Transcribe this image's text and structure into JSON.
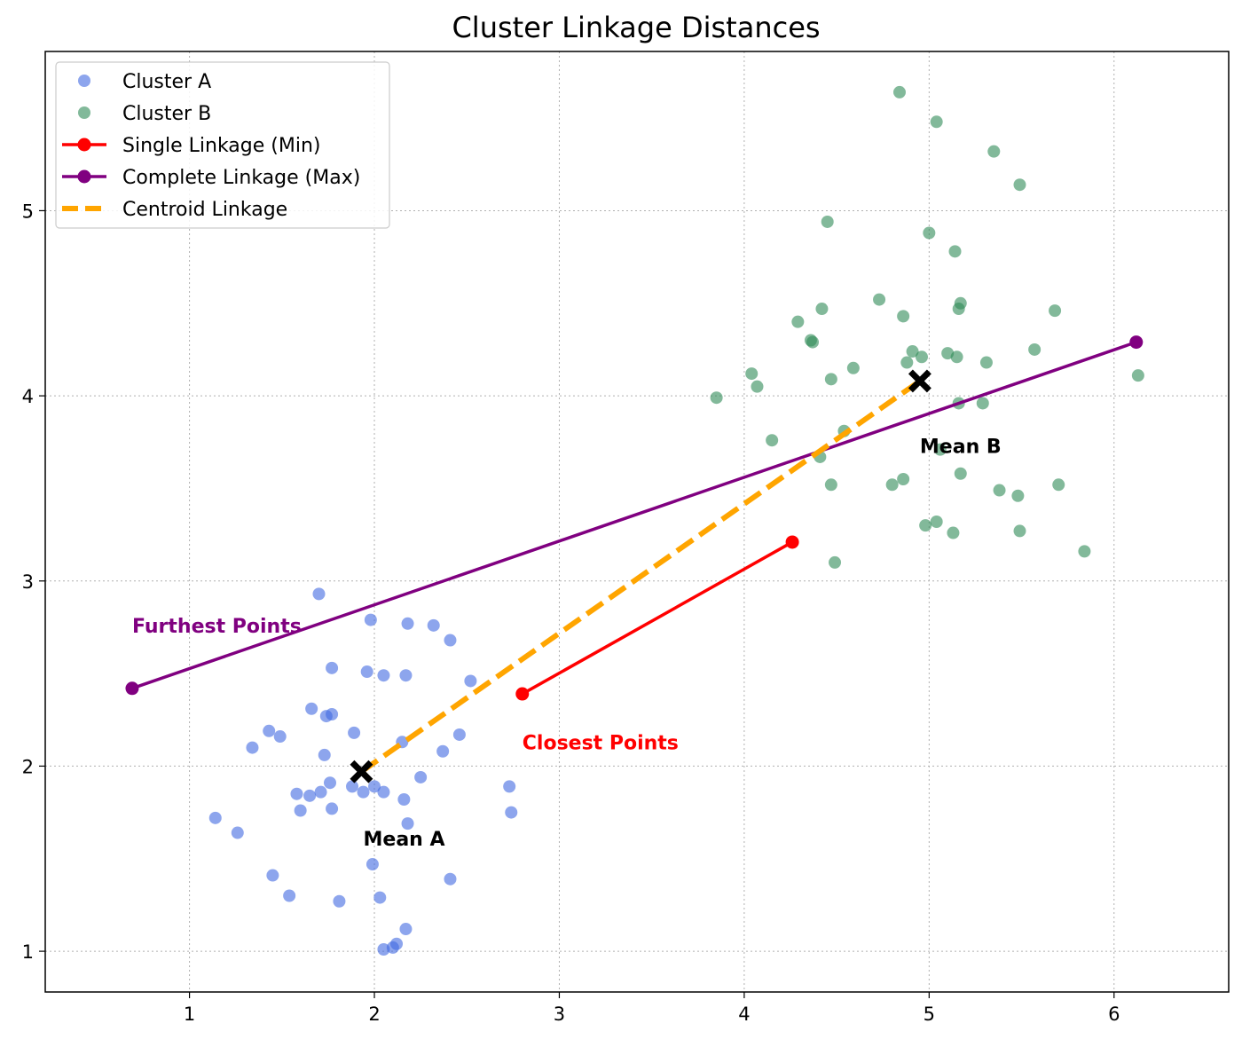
{
  "chart_data": {
    "type": "scatter",
    "title": "Cluster Linkage Distances",
    "xlabel": "",
    "ylabel": "",
    "xlim": [
      0.22,
      6.62
    ],
    "ylim": [
      0.78,
      5.86
    ],
    "xticks": [
      1,
      2,
      3,
      4,
      5,
      6
    ],
    "yticks": [
      1,
      2,
      3,
      4,
      5
    ],
    "grid": true,
    "legend_position": "top-left",
    "series": [
      {
        "name": "Cluster A",
        "type": "scatter",
        "color": "#4169e1",
        "points": [
          [
            1.7,
            2.93
          ],
          [
            1.98,
            2.79
          ],
          [
            2.18,
            2.77
          ],
          [
            2.32,
            2.76
          ],
          [
            2.41,
            2.68
          ],
          [
            1.77,
            2.53
          ],
          [
            1.96,
            2.51
          ],
          [
            2.05,
            2.49
          ],
          [
            2.17,
            2.49
          ],
          [
            2.52,
            2.46
          ],
          [
            1.66,
            2.31
          ],
          [
            1.74,
            2.27
          ],
          [
            1.77,
            2.28
          ],
          [
            1.43,
            2.19
          ],
          [
            1.49,
            2.16
          ],
          [
            1.89,
            2.18
          ],
          [
            2.46,
            2.17
          ],
          [
            2.15,
            2.13
          ],
          [
            1.34,
            2.1
          ],
          [
            2.37,
            2.08
          ],
          [
            1.73,
            2.06
          ],
          [
            2.25,
            1.94
          ],
          [
            1.76,
            1.91
          ],
          [
            1.88,
            1.89
          ],
          [
            2.0,
            1.89
          ],
          [
            2.73,
            1.89
          ],
          [
            1.94,
            1.86
          ],
          [
            2.05,
            1.86
          ],
          [
            1.58,
            1.85
          ],
          [
            1.65,
            1.84
          ],
          [
            1.71,
            1.86
          ],
          [
            2.16,
            1.82
          ],
          [
            1.77,
            1.77
          ],
          [
            1.6,
            1.76
          ],
          [
            2.74,
            1.75
          ],
          [
            1.14,
            1.72
          ],
          [
            2.18,
            1.69
          ],
          [
            1.26,
            1.64
          ],
          [
            1.99,
            1.47
          ],
          [
            1.45,
            1.41
          ],
          [
            2.41,
            1.39
          ],
          [
            1.54,
            1.3
          ],
          [
            1.81,
            1.27
          ],
          [
            2.03,
            1.29
          ],
          [
            2.17,
            1.12
          ],
          [
            2.12,
            1.04
          ],
          [
            2.05,
            1.01
          ],
          [
            2.1,
            1.02
          ]
        ]
      },
      {
        "name": "Cluster B",
        "type": "scatter",
        "color": "#2e8b57",
        "points": [
          [
            4.84,
            5.64
          ],
          [
            5.04,
            5.48
          ],
          [
            5.35,
            5.32
          ],
          [
            5.49,
            5.14
          ],
          [
            4.45,
            4.94
          ],
          [
            5.0,
            4.88
          ],
          [
            5.14,
            4.78
          ],
          [
            4.73,
            4.52
          ],
          [
            5.17,
            4.5
          ],
          [
            5.16,
            4.47
          ],
          [
            4.42,
            4.47
          ],
          [
            4.86,
            4.43
          ],
          [
            4.29,
            4.4
          ],
          [
            5.68,
            4.46
          ],
          [
            4.36,
            4.3
          ],
          [
            4.37,
            4.29
          ],
          [
            5.57,
            4.25
          ],
          [
            4.91,
            4.24
          ],
          [
            4.96,
            4.21
          ],
          [
            4.88,
            4.18
          ],
          [
            5.1,
            4.23
          ],
          [
            5.15,
            4.21
          ],
          [
            5.31,
            4.18
          ],
          [
            4.59,
            4.15
          ],
          [
            4.04,
            4.12
          ],
          [
            4.47,
            4.09
          ],
          [
            4.07,
            4.05
          ],
          [
            6.13,
            4.11
          ],
          [
            3.85,
            3.99
          ],
          [
            5.16,
            3.96
          ],
          [
            5.29,
            3.96
          ],
          [
            4.54,
            3.81
          ],
          [
            5.06,
            3.71
          ],
          [
            4.15,
            3.76
          ],
          [
            4.41,
            3.67
          ],
          [
            5.17,
            3.58
          ],
          [
            4.86,
            3.55
          ],
          [
            4.8,
            3.52
          ],
          [
            4.47,
            3.52
          ],
          [
            5.38,
            3.49
          ],
          [
            5.48,
            3.46
          ],
          [
            5.7,
            3.52
          ],
          [
            5.04,
            3.32
          ],
          [
            4.98,
            3.3
          ],
          [
            5.13,
            3.26
          ],
          [
            5.49,
            3.27
          ],
          [
            5.84,
            3.16
          ],
          [
            4.49,
            3.1
          ]
        ]
      },
      {
        "name": "Single Linkage (Min)",
        "type": "line",
        "color": "#ff0000",
        "style": "solid",
        "markers": true,
        "points": [
          [
            2.8,
            2.39
          ],
          [
            4.26,
            3.21
          ]
        ]
      },
      {
        "name": "Complete Linkage (Max)",
        "type": "line",
        "color": "#800080",
        "style": "solid",
        "markers": true,
        "points": [
          [
            0.69,
            2.42
          ],
          [
            6.12,
            4.29
          ]
        ]
      },
      {
        "name": "Centroid Linkage",
        "type": "line",
        "color": "#ffa500",
        "style": "dashed",
        "markers": false,
        "points": [
          [
            1.93,
            1.97
          ],
          [
            4.95,
            4.08
          ]
        ]
      }
    ],
    "centroids": [
      {
        "label": "Mean A",
        "x": 1.93,
        "y": 1.97,
        "marker": "X",
        "color": "#000000"
      },
      {
        "label": "Mean B",
        "x": 4.95,
        "y": 4.08,
        "marker": "X",
        "color": "#000000"
      }
    ],
    "annotations": [
      {
        "text": "Furthest Points",
        "x": 0.69,
        "y": 2.76,
        "color": "#800080"
      },
      {
        "text": "Closest Points",
        "x": 2.8,
        "y": 2.13,
        "color": "#ff0000"
      },
      {
        "text": "Mean A",
        "x": 1.94,
        "y": 1.61,
        "color": "#000000"
      },
      {
        "text": "Mean B",
        "x": 4.95,
        "y": 3.73,
        "color": "#000000"
      }
    ]
  }
}
